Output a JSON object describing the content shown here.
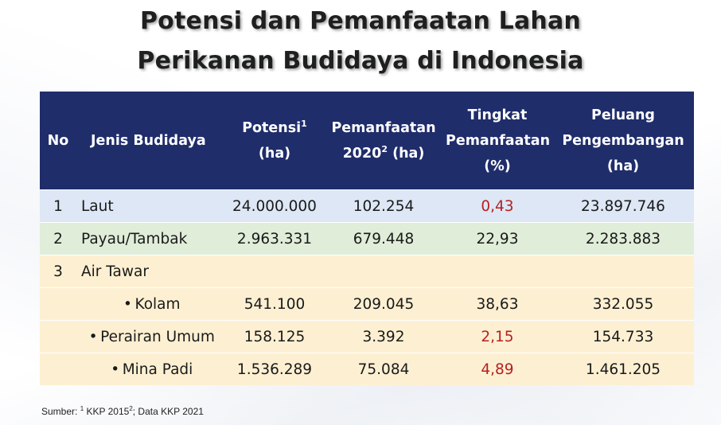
{
  "title": {
    "line1": "Potensi dan Pemanfaatan Lahan",
    "line2": "Perikanan Budidaya di Indonesia"
  },
  "table": {
    "headers": {
      "no": "No",
      "jenis": "Jenis Budidaya",
      "potensi_line1": "Potensi",
      "potensi_sup": "1",
      "potensi_line2": "(ha)",
      "pemanfaatan_line1": "Pemanfaatan",
      "pemanfaatan_line2a": "2020",
      "pemanfaatan_sup": "2",
      "pemanfaatan_line2b": " (ha)",
      "tingkat_line1": "Tingkat",
      "tingkat_line2": "Pemanfaatan",
      "tingkat_line3": "(%)",
      "peluang_line1": "Peluang",
      "peluang_line2": "Pengembangan",
      "peluang_line3": "(ha)"
    },
    "rows": [
      {
        "no": "1",
        "jenis": "Laut",
        "potensi": "24.000.000",
        "pemanfaatan": "102.254",
        "tingkat": "0,43",
        "peluang": "23.897.746"
      },
      {
        "no": "2",
        "jenis": "Payau/Tambak",
        "potensi": "2.963.331",
        "pemanfaatan": "679.448",
        "tingkat": "22,93",
        "peluang": "2.283.883"
      },
      {
        "no": "3",
        "jenis": "Air Tawar",
        "potensi": "",
        "pemanfaatan": "",
        "tingkat": "",
        "peluang": ""
      },
      {
        "no": "",
        "bullet": "•",
        "jenis": "Kolam",
        "potensi": "541.100",
        "pemanfaatan": "209.045",
        "tingkat": "38,63",
        "peluang": "332.055"
      },
      {
        "no": "",
        "bullet": "•",
        "jenis": "Perairan Umum",
        "potensi": "158.125",
        "pemanfaatan": "3.392",
        "tingkat": "2,15",
        "peluang": "154.733"
      },
      {
        "no": "",
        "bullet": "•",
        "jenis": "Mina Padi",
        "potensi": "1.536.289",
        "pemanfaatan": "75.084",
        "tingkat": "4,89",
        "peluang": "1.461.205"
      }
    ]
  },
  "source": {
    "prefix": "Sumber: ",
    "sup1": "1",
    "part1": " KKP 2015",
    "sup2": "2",
    "part2": "; Data KKP 2021"
  },
  "colors": {
    "header_bg": "#1f2d6b",
    "row_laut": "#dde7f5",
    "row_payau": "#e0edd9",
    "row_tawar": "#fdf0d2",
    "highlight_red": "#b81f1f"
  }
}
